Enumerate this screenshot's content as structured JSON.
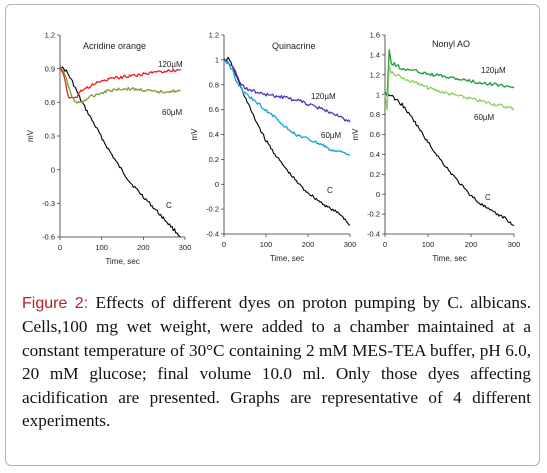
{
  "caption": {
    "label": "Figure 2:",
    "text": "Effects of different dyes on proton pumping by C. albicans. Cells,100 mg wet weight, were added to a chamber maintained at a constant temperature of 30°C containing 2 mM MES-TEA buffer, pH 6.0, 20 mM glucose; final volume 10.0 ml. Only those dyes affecting acidification are presented. Graphs are representative of 4 different experiments."
  },
  "chart_data": [
    {
      "type": "line",
      "title": "Acridine orange",
      "xlabel": "Time, sec",
      "ylabel": "mV",
      "xlim": [
        0,
        300
      ],
      "ylim": [
        -0.6,
        1.2
      ],
      "xticks": [
        0,
        100,
        200,
        300
      ],
      "yticks": [
        -0.6,
        -0.3,
        0,
        0.3,
        0.6,
        0.9,
        1.2
      ],
      "ytick_labels": [
        "-0.6",
        "-0.3",
        "0",
        "0.3",
        "0.6",
        "0.9",
        "1.2"
      ],
      "series": [
        {
          "name": "C",
          "color": "#000000",
          "x": [
            0,
            15,
            30,
            50,
            80,
            110,
            140,
            170,
            200,
            230,
            260,
            290
          ],
          "y": [
            0.92,
            0.88,
            0.78,
            0.62,
            0.42,
            0.22,
            0.04,
            -0.12,
            -0.24,
            -0.36,
            -0.48,
            -0.6
          ]
        },
        {
          "name": "120µM",
          "color": "#e8211d",
          "x": [
            0,
            10,
            20,
            35,
            50,
            80,
            110,
            140,
            170,
            200,
            230,
            260,
            290
          ],
          "y": [
            0.92,
            0.84,
            0.64,
            0.63,
            0.7,
            0.76,
            0.8,
            0.82,
            0.84,
            0.85,
            0.87,
            0.88,
            0.89
          ]
        },
        {
          "name": "60µM",
          "color": "#7a9e35",
          "x": [
            0,
            10,
            20,
            35,
            50,
            80,
            110,
            140,
            170,
            200,
            230,
            260,
            290
          ],
          "y": [
            0.92,
            0.86,
            0.75,
            0.6,
            0.6,
            0.66,
            0.7,
            0.72,
            0.72,
            0.71,
            0.69,
            0.7,
            0.7
          ]
        }
      ]
    },
    {
      "type": "line",
      "title": "Quinacrine",
      "xlabel": "Time, sec",
      "ylabel": "mV",
      "xlim": [
        0,
        300
      ],
      "ylim": [
        -0.4,
        1.2
      ],
      "xticks": [
        0,
        100,
        200,
        300
      ],
      "yticks": [
        -0.4,
        -0.2,
        0,
        0.2,
        0.4,
        0.6,
        0.8,
        1,
        1.2
      ],
      "ytick_labels": [
        "-0.4",
        "-0.2",
        "0",
        "0.2",
        "0.4",
        "0.6",
        "0.8",
        "1",
        "1.2"
      ],
      "series": [
        {
          "name": "C",
          "color": "#000000",
          "x": [
            0,
            10,
            20,
            40,
            70,
            100,
            130,
            160,
            190,
            220,
            250,
            280,
            300
          ],
          "y": [
            1.0,
            1.01,
            0.95,
            0.78,
            0.55,
            0.35,
            0.2,
            0.07,
            -0.04,
            -0.12,
            -0.19,
            -0.25,
            -0.33
          ]
        },
        {
          "name": "120µM",
          "color": "#5533bb",
          "x": [
            0,
            10,
            20,
            30,
            40,
            60,
            100,
            140,
            180,
            220,
            260,
            300
          ],
          "y": [
            1.0,
            0.98,
            0.95,
            0.88,
            0.8,
            0.76,
            0.72,
            0.7,
            0.67,
            0.62,
            0.57,
            0.5
          ]
        },
        {
          "name": "60µM",
          "color": "#1aa0dc",
          "x": [
            0,
            10,
            20,
            30,
            50,
            80,
            110,
            140,
            170,
            200,
            230,
            260,
            300
          ],
          "y": [
            1.0,
            0.97,
            0.92,
            0.82,
            0.73,
            0.65,
            0.57,
            0.48,
            0.4,
            0.36,
            0.32,
            0.27,
            0.24
          ]
        }
      ]
    },
    {
      "type": "line",
      "title": "Nonyl AO",
      "xlabel": "Time, sec",
      "ylabel": "mV",
      "xlim": [
        0,
        300
      ],
      "ylim": [
        -0.4,
        1.6
      ],
      "xticks": [
        0,
        100,
        200,
        300
      ],
      "yticks": [
        -0.4,
        -0.2,
        0,
        0.2,
        0.4,
        0.6,
        0.8,
        1,
        1.2,
        1.4,
        1.6
      ],
      "ytick_labels": [
        "-0.4",
        "-0.2",
        "0",
        "0.2",
        "0.4",
        "0.6",
        "0.8",
        "1",
        "1.2",
        "1.4",
        "1.6"
      ],
      "series": [
        {
          "name": "C",
          "color": "#000000",
          "x": [
            0,
            10,
            20,
            40,
            70,
            100,
            130,
            160,
            190,
            220,
            250,
            280,
            300
          ],
          "y": [
            1.02,
            1.0,
            0.97,
            0.9,
            0.72,
            0.52,
            0.34,
            0.18,
            0.03,
            -0.09,
            -0.18,
            -0.24,
            -0.32
          ]
        },
        {
          "name": "120µM",
          "color": "#1b9a3a",
          "x": [
            0,
            5,
            10,
            15,
            25,
            40,
            70,
            100,
            140,
            180,
            220,
            260,
            300
          ],
          "y": [
            1.02,
            1.0,
            1.44,
            1.32,
            1.3,
            1.26,
            1.24,
            1.21,
            1.18,
            1.15,
            1.12,
            1.1,
            1.08
          ]
        },
        {
          "name": "60µM",
          "color": "#8ccf5a",
          "x": [
            0,
            5,
            10,
            15,
            25,
            40,
            70,
            100,
            140,
            180,
            220,
            260,
            300
          ],
          "y": [
            1.02,
            0.85,
            1.3,
            1.22,
            1.2,
            1.17,
            1.12,
            1.07,
            1.02,
            0.98,
            0.94,
            0.9,
            0.86
          ]
        }
      ]
    }
  ]
}
